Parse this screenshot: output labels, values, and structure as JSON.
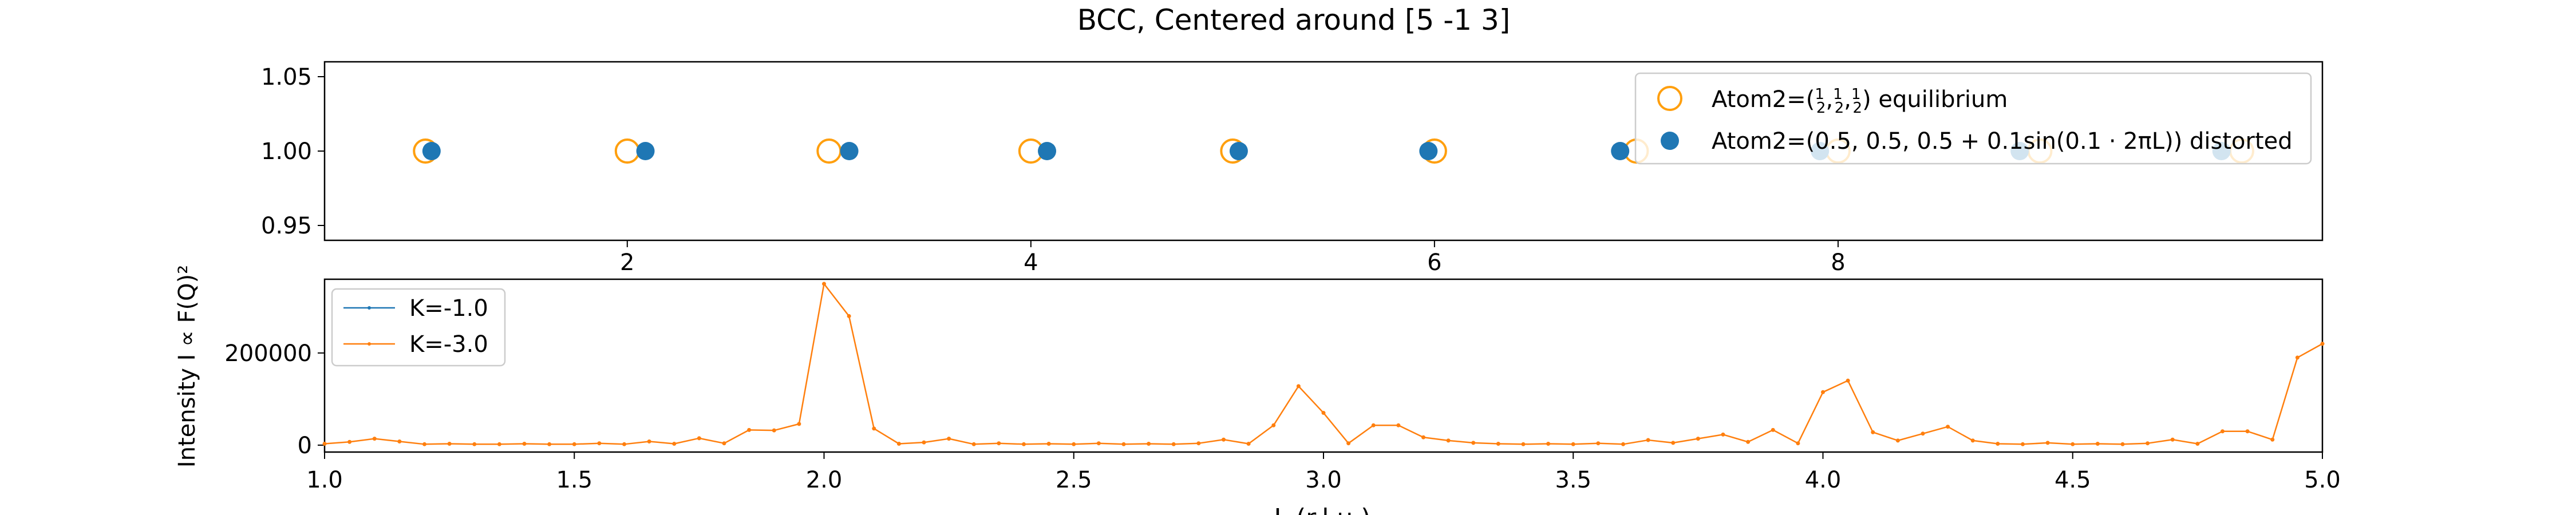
{
  "figure": {
    "title": "BCC, Centered around [5 -1 3]",
    "colors": {
      "equilibrium": "#ff9f0e",
      "distorted": "#1f77b4",
      "k1": "#1f77b4",
      "k3": "#ff7f0e"
    }
  },
  "chart_data": [
    {
      "type": "scatter",
      "ylim": [
        0.94,
        1.06
      ],
      "yticks": [
        "1.05",
        "1.00",
        "0.95"
      ],
      "xlim": [
        0.5,
        10.4
      ],
      "xticks": [
        "2",
        "4",
        "6",
        "8"
      ],
      "legend_position": "top-right",
      "series": [
        {
          "name_prefix": "Atom2=(",
          "name_fracs": [
            "1",
            "2",
            "1",
            "2",
            "1",
            "2"
          ],
          "name_suffix": ") equilibrium",
          "marker": "open-circle",
          "points": [
            [
              1,
              1
            ],
            [
              2,
              1
            ],
            [
              3,
              1
            ],
            [
              4,
              1
            ],
            [
              5,
              1
            ],
            [
              6,
              1
            ],
            [
              7,
              1
            ],
            [
              8,
              1
            ],
            [
              9,
              1
            ],
            [
              10,
              1
            ]
          ]
        },
        {
          "name": "Atom2=(0.5, 0.5, 0.5 + 0.1sin(0.1 · 2πL)) distorted",
          "marker": "filled-circle",
          "points": [
            [
              1.03,
              1
            ],
            [
              2.09,
              1
            ],
            [
              3.1,
              1
            ],
            [
              4.08,
              1
            ],
            [
              5.03,
              1
            ],
            [
              5.97,
              1
            ],
            [
              6.92,
              1
            ],
            [
              7.91,
              1
            ],
            [
              8.9,
              1
            ],
            [
              9.9,
              1
            ]
          ]
        }
      ]
    },
    {
      "type": "line",
      "xlabel": "L (r.l.u.)",
      "ylabel": "Intensity I ∝ F(Q)²",
      "xlim": [
        1.0,
        5.0
      ],
      "ylim": [
        -15000,
        360000
      ],
      "xticks": [
        "1.0",
        "1.5",
        "2.0",
        "2.5",
        "3.0",
        "3.5",
        "4.0",
        "4.5",
        "5.0"
      ],
      "yticks": [
        "0",
        "200000"
      ],
      "legend_position": "top-left",
      "series": [
        {
          "name": "K=-1.0",
          "values": []
        },
        {
          "name": "K=-3.0",
          "x": [
            1.0,
            1.05,
            1.1,
            1.15,
            1.2,
            1.25,
            1.3,
            1.35,
            1.4,
            1.45,
            1.5,
            1.55,
            1.6,
            1.65,
            1.7,
            1.75,
            1.8,
            1.85,
            1.9,
            1.95,
            2.0,
            2.05,
            2.1,
            2.15,
            2.2,
            2.25,
            2.3,
            2.35,
            2.4,
            2.45,
            2.5,
            2.55,
            2.6,
            2.65,
            2.7,
            2.75,
            2.8,
            2.85,
            2.9,
            2.95,
            3.0,
            3.05,
            3.1,
            3.15,
            3.2,
            3.25,
            3.3,
            3.35,
            3.4,
            3.45,
            3.5,
            3.55,
            3.6,
            3.65,
            3.7,
            3.75,
            3.8,
            3.85,
            3.9,
            3.95,
            4.0,
            4.05,
            4.1,
            4.15,
            4.2,
            4.25,
            4.3,
            4.35,
            4.4,
            4.45,
            4.5,
            4.55,
            4.6,
            4.65,
            4.7,
            4.75,
            4.8,
            4.85,
            4.9,
            4.95,
            5.0
          ],
          "values": [
            3000,
            7000,
            14000,
            8000,
            2000,
            3000,
            2000,
            2000,
            3000,
            2000,
            2000,
            4000,
            2000,
            8000,
            3000,
            15000,
            4000,
            33000,
            32000,
            46000,
            350000,
            280000,
            36000,
            3000,
            6000,
            14000,
            2000,
            4000,
            2000,
            3000,
            2000,
            4000,
            2000,
            3000,
            2000,
            4000,
            12000,
            3000,
            43000,
            128000,
            70000,
            4000,
            43000,
            43000,
            17000,
            10000,
            5000,
            3000,
            2000,
            3000,
            2000,
            4000,
            2000,
            11000,
            5000,
            14000,
            23000,
            7000,
            33000,
            4000,
            115000,
            140000,
            28000,
            10000,
            25000,
            40000,
            10000,
            3000,
            2000,
            5000,
            2000,
            3000,
            2000,
            4000,
            12000,
            3000,
            30000,
            30000,
            12000,
            190000,
            220000
          ]
        }
      ]
    }
  ]
}
